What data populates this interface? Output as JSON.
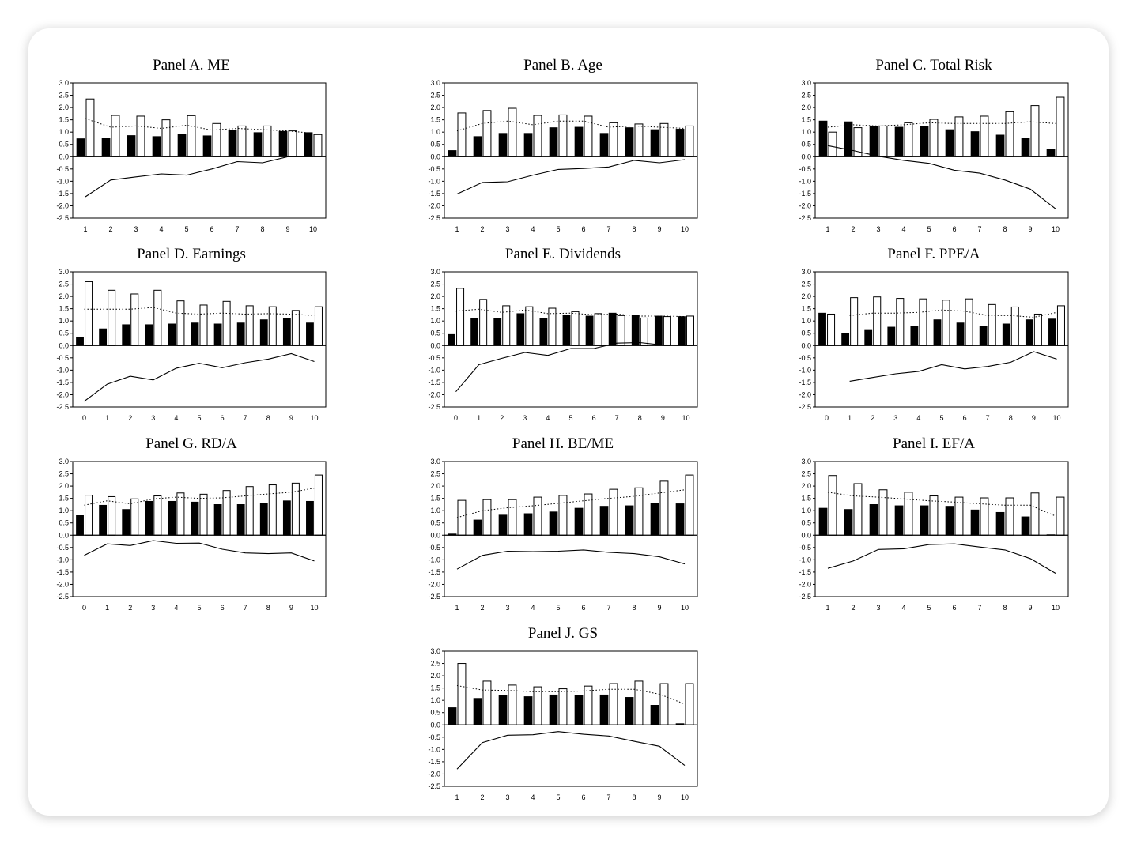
{
  "chart_data": [
    {
      "id": "A",
      "type": "bar",
      "title": "Panel A. ME",
      "categories": [
        "1",
        "2",
        "3",
        "4",
        "5",
        "6",
        "7",
        "8",
        "9",
        "10"
      ],
      "ylim": [
        -2.5,
        3.0
      ],
      "yticks": [
        "3.0",
        "2.5",
        "2.0",
        "1.5",
        "1.0",
        "0.5",
        "0.0",
        "-0.5",
        "-1.0",
        "-1.5",
        "-2.0",
        "-2.5"
      ],
      "series": [
        {
          "kind": "bar-filled",
          "values": [
            0.73,
            0.75,
            0.86,
            0.82,
            0.92,
            0.85,
            1.07,
            0.98,
            1.03,
            0.98
          ]
        },
        {
          "kind": "bar-open",
          "values": [
            2.35,
            1.68,
            1.65,
            1.5,
            1.67,
            1.35,
            1.25,
            1.25,
            1.05,
            0.9
          ]
        },
        {
          "kind": "dotted-line",
          "values": [
            1.55,
            1.2,
            1.25,
            1.15,
            1.28,
            1.08,
            1.15,
            1.1,
            1.05,
            0.95
          ]
        },
        {
          "kind": "solid-line",
          "values": [
            -1.63,
            -0.95,
            -0.82,
            -0.7,
            -0.75,
            -0.5,
            -0.2,
            -0.25,
            0.0,
            0.0
          ]
        }
      ]
    },
    {
      "id": "B",
      "type": "bar",
      "title": "Panel B. Age",
      "categories": [
        "1",
        "2",
        "3",
        "4",
        "5",
        "6",
        "7",
        "8",
        "9",
        "10"
      ],
      "ylim": [
        -2.5,
        3.0
      ],
      "yticks": [
        "3.0",
        "2.5",
        "2.0",
        "1.5",
        "1.0",
        "0.5",
        "0.0",
        "-0.5",
        "-1.0",
        "-1.5",
        "-2.0",
        "-2.5"
      ],
      "series": [
        {
          "kind": "bar-filled",
          "values": [
            0.25,
            0.82,
            0.95,
            0.95,
            1.18,
            1.2,
            0.95,
            1.18,
            1.1,
            1.12
          ]
        },
        {
          "kind": "bar-open",
          "values": [
            1.78,
            1.88,
            1.97,
            1.68,
            1.7,
            1.65,
            1.38,
            1.33,
            1.35,
            1.25
          ]
        },
        {
          "kind": "dotted-line",
          "values": [
            1.05,
            1.35,
            1.45,
            1.3,
            1.45,
            1.45,
            1.2,
            1.25,
            1.2,
            1.15
          ]
        },
        {
          "kind": "solid-line",
          "values": [
            -1.52,
            -1.05,
            -1.02,
            -0.75,
            -0.52,
            -0.48,
            -0.42,
            -0.15,
            -0.25,
            -0.12
          ]
        }
      ]
    },
    {
      "id": "C",
      "type": "bar",
      "title": "Panel C. Total Risk",
      "categories": [
        "1",
        "2",
        "3",
        "4",
        "5",
        "6",
        "7",
        "8",
        "9",
        "10"
      ],
      "ylim": [
        -2.5,
        3.0
      ],
      "yticks": [
        "3.0",
        "2.5",
        "2.0",
        "1.5",
        "1.0",
        "0.5",
        "0.0",
        "-0.5",
        "-1.0",
        "-1.5",
        "-2.0",
        "-2.5"
      ],
      "series": [
        {
          "kind": "bar-filled",
          "values": [
            1.45,
            1.42,
            1.25,
            1.2,
            1.25,
            1.1,
            1.02,
            0.88,
            0.75,
            0.3
          ]
        },
        {
          "kind": "bar-open",
          "values": [
            1.0,
            1.18,
            1.25,
            1.38,
            1.52,
            1.62,
            1.65,
            1.83,
            2.08,
            2.42
          ]
        },
        {
          "kind": "dotted-line",
          "values": [
            1.2,
            1.3,
            1.25,
            1.3,
            1.38,
            1.35,
            1.35,
            1.35,
            1.42,
            1.35
          ]
        },
        {
          "kind": "solid-line",
          "values": [
            0.45,
            0.25,
            0.02,
            -0.15,
            -0.27,
            -0.55,
            -0.67,
            -0.95,
            -1.32,
            -2.12
          ]
        }
      ]
    },
    {
      "id": "D",
      "type": "bar",
      "title": "Panel D. Earnings",
      "categories": [
        "0",
        "1",
        "2",
        "3",
        "4",
        "5",
        "6",
        "7",
        "8",
        "9",
        "10"
      ],
      "ylim": [
        -2.5,
        3.0
      ],
      "yticks": [
        "3.0",
        "2.5",
        "2.0",
        "1.5",
        "1.0",
        "0.5",
        "0.0",
        "-0.5",
        "-1.0",
        "-1.5",
        "-2.0",
        "-2.5"
      ],
      "series": [
        {
          "kind": "bar-filled",
          "values": [
            0.35,
            0.68,
            0.85,
            0.85,
            0.88,
            0.92,
            0.88,
            0.92,
            1.05,
            1.1,
            0.92
          ]
        },
        {
          "kind": "bar-open",
          "values": [
            2.6,
            2.25,
            2.1,
            2.25,
            1.82,
            1.65,
            1.8,
            1.62,
            1.58,
            1.43,
            1.58
          ]
        },
        {
          "kind": "dotted-line",
          "values": [
            1.48,
            1.48,
            1.48,
            1.55,
            1.32,
            1.28,
            1.32,
            1.28,
            1.3,
            1.28,
            1.22
          ]
        },
        {
          "kind": "solid-line",
          "values": [
            -2.27,
            -1.57,
            -1.25,
            -1.4,
            -0.92,
            -0.72,
            -0.9,
            -0.7,
            -0.55,
            -0.33,
            -0.65
          ]
        }
      ]
    },
    {
      "id": "E",
      "type": "bar",
      "title": "Panel E. Dividends",
      "categories": [
        "0",
        "1",
        "2",
        "3",
        "4",
        "5",
        "6",
        "7",
        "8",
        "9",
        "10"
      ],
      "ylim": [
        -2.5,
        3.0
      ],
      "yticks": [
        "3.0",
        "2.5",
        "2.0",
        "1.5",
        "1.0",
        "0.5",
        "0.0",
        "-0.5",
        "-1.0",
        "-1.5",
        "-2.0",
        "-2.5"
      ],
      "series": [
        {
          "kind": "bar-filled",
          "values": [
            0.45,
            1.1,
            1.1,
            1.3,
            1.12,
            1.25,
            1.2,
            1.32,
            1.25,
            1.2,
            1.18
          ]
        },
        {
          "kind": "bar-open",
          "values": [
            2.33,
            1.88,
            1.62,
            1.58,
            1.52,
            1.38,
            1.3,
            1.22,
            1.12,
            1.18,
            1.2
          ]
        },
        {
          "kind": "dotted-line",
          "values": [
            1.4,
            1.48,
            1.35,
            1.45,
            1.3,
            1.32,
            1.25,
            1.28,
            1.2,
            1.2,
            1.18
          ]
        },
        {
          "kind": "solid-line",
          "values": [
            -1.88,
            -0.78,
            -0.52,
            -0.28,
            -0.4,
            -0.12,
            -0.12,
            0.1,
            0.12,
            0.02,
            0.0
          ]
        }
      ]
    },
    {
      "id": "F",
      "type": "bar",
      "title": "Panel F. PPE/A",
      "categories": [
        "0",
        "1",
        "2",
        "3",
        "4",
        "5",
        "6",
        "7",
        "8",
        "9",
        "10"
      ],
      "ylim": [
        -2.5,
        3.0
      ],
      "yticks": [
        "3.0",
        "2.5",
        "2.0",
        "1.5",
        "1.0",
        "0.5",
        "0.0",
        "-0.5",
        "-1.0",
        "-1.5",
        "-2.0",
        "-2.5"
      ],
      "series": [
        {
          "kind": "bar-filled",
          "values": [
            1.32,
            0.48,
            0.65,
            0.75,
            0.8,
            1.05,
            0.92,
            0.78,
            0.88,
            1.05,
            1.08
          ]
        },
        {
          "kind": "bar-open",
          "values": [
            1.28,
            1.95,
            1.98,
            1.92,
            1.9,
            1.85,
            1.9,
            1.67,
            1.57,
            1.28,
            1.62
          ]
        },
        {
          "kind": "dotted-line",
          "values": [
            null,
            1.22,
            1.32,
            1.32,
            1.35,
            1.45,
            1.4,
            1.22,
            1.22,
            1.15,
            1.35
          ]
        },
        {
          "kind": "solid-line",
          "values": [
            null,
            -1.45,
            -1.3,
            -1.15,
            -1.05,
            -0.78,
            -0.95,
            -0.85,
            -0.68,
            -0.25,
            -0.55
          ]
        }
      ]
    },
    {
      "id": "G",
      "type": "bar",
      "title": "Panel G. RD/A",
      "categories": [
        "0",
        "1",
        "2",
        "3",
        "4",
        "5",
        "6",
        "7",
        "8",
        "9",
        "10"
      ],
      "ylim": [
        -2.5,
        3.0
      ],
      "yticks": [
        "3.0",
        "2.5",
        "2.0",
        "1.5",
        "1.0",
        "0.5",
        "0.0",
        "-0.5",
        "-1.0",
        "-1.5",
        "-2.0",
        "-2.5"
      ],
      "series": [
        {
          "kind": "bar-filled",
          "values": [
            0.8,
            1.22,
            1.05,
            1.38,
            1.38,
            1.35,
            1.25,
            1.25,
            1.3,
            1.4,
            1.38
          ]
        },
        {
          "kind": "bar-open",
          "values": [
            1.63,
            1.57,
            1.48,
            1.6,
            1.72,
            1.67,
            1.82,
            1.98,
            2.05,
            2.12,
            2.45
          ]
        },
        {
          "kind": "dotted-line",
          "values": [
            1.22,
            1.4,
            1.28,
            1.48,
            1.55,
            1.5,
            1.52,
            1.6,
            1.68,
            1.75,
            1.92
          ]
        },
        {
          "kind": "solid-line",
          "values": [
            -0.82,
            -0.35,
            -0.42,
            -0.22,
            -0.33,
            -0.32,
            -0.57,
            -0.72,
            -0.75,
            -0.72,
            -1.05
          ]
        }
      ]
    },
    {
      "id": "H",
      "type": "bar",
      "title": "Panel H. BE/ME",
      "categories": [
        "1",
        "2",
        "3",
        "4",
        "5",
        "6",
        "7",
        "8",
        "9",
        "10"
      ],
      "ylim": [
        -2.5,
        3.0
      ],
      "yticks": [
        "3.0",
        "2.5",
        "2.0",
        "1.5",
        "1.0",
        "0.5",
        "0.0",
        "-0.5",
        "-1.0",
        "-1.5",
        "-2.0",
        "-2.5"
      ],
      "series": [
        {
          "kind": "bar-filled",
          "values": [
            0.05,
            0.62,
            0.82,
            0.88,
            0.95,
            1.1,
            1.18,
            1.2,
            1.3,
            1.28
          ]
        },
        {
          "kind": "bar-open",
          "values": [
            1.42,
            1.45,
            1.45,
            1.55,
            1.62,
            1.68,
            1.87,
            1.93,
            2.2,
            2.45
          ]
        },
        {
          "kind": "dotted-line",
          "values": [
            0.72,
            1.0,
            1.12,
            1.2,
            1.3,
            1.4,
            1.5,
            1.58,
            1.72,
            1.85
          ]
        },
        {
          "kind": "solid-line",
          "values": [
            -1.38,
            -0.82,
            -0.65,
            -0.67,
            -0.65,
            -0.6,
            -0.7,
            -0.75,
            -0.88,
            -1.17
          ]
        }
      ]
    },
    {
      "id": "I",
      "type": "bar",
      "title": "Panel I. EF/A",
      "categories": [
        "1",
        "2",
        "3",
        "4",
        "5",
        "6",
        "7",
        "8",
        "9",
        "10"
      ],
      "ylim": [
        -2.5,
        3.0
      ],
      "yticks": [
        "3.0",
        "2.5",
        "2.0",
        "1.5",
        "1.0",
        "0.5",
        "0.0",
        "-0.5",
        "-1.0",
        "-1.5",
        "-2.0",
        "-2.5"
      ],
      "series": [
        {
          "kind": "bar-filled",
          "values": [
            1.1,
            1.05,
            1.25,
            1.2,
            1.2,
            1.18,
            1.03,
            0.93,
            0.75,
            0.02
          ]
        },
        {
          "kind": "bar-open",
          "values": [
            2.43,
            2.1,
            1.85,
            1.75,
            1.6,
            1.55,
            1.52,
            1.52,
            1.72,
            1.55
          ]
        },
        {
          "kind": "dotted-line",
          "values": [
            1.75,
            1.6,
            1.55,
            1.48,
            1.4,
            1.35,
            1.28,
            1.22,
            1.22,
            0.78
          ]
        },
        {
          "kind": "solid-line",
          "values": [
            -1.35,
            -1.05,
            -0.58,
            -0.55,
            -0.38,
            -0.35,
            -0.48,
            -0.6,
            -0.95,
            -1.55
          ]
        }
      ]
    },
    {
      "id": "J",
      "type": "bar",
      "title": "Panel J. GS",
      "categories": [
        "1",
        "2",
        "3",
        "4",
        "5",
        "6",
        "7",
        "8",
        "9",
        "10"
      ],
      "ylim": [
        -2.5,
        3.0
      ],
      "yticks": [
        "3.0",
        "2.5",
        "2.0",
        "1.5",
        "1.0",
        "0.5",
        "0.0",
        "-0.5",
        "-1.0",
        "-1.5",
        "-2.0",
        "-2.5"
      ],
      "series": [
        {
          "kind": "bar-filled",
          "values": [
            0.7,
            1.08,
            1.2,
            1.15,
            1.22,
            1.2,
            1.22,
            1.12,
            0.8,
            0.05
          ]
        },
        {
          "kind": "bar-open",
          "values": [
            2.5,
            1.78,
            1.62,
            1.55,
            1.47,
            1.58,
            1.68,
            1.78,
            1.68,
            1.68
          ]
        },
        {
          "kind": "dotted-line",
          "values": [
            1.6,
            1.42,
            1.4,
            1.35,
            1.35,
            1.38,
            1.45,
            1.45,
            1.25,
            0.85
          ]
        },
        {
          "kind": "solid-line",
          "values": [
            -1.8,
            -0.72,
            -0.42,
            -0.4,
            -0.27,
            -0.38,
            -0.45,
            -0.67,
            -0.87,
            -1.65
          ]
        }
      ]
    }
  ]
}
